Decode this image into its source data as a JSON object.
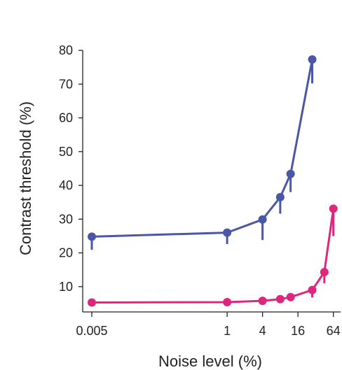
{
  "chart_data": {
    "type": "line",
    "title": "",
    "xlabel": "Noise level (%)",
    "ylabel": "Contrast threshold (%)",
    "x_scale": "log2",
    "x_tick_labels": [
      "0.005",
      "1",
      "4",
      "16",
      "64"
    ],
    "x_ticks": [
      0.005,
      1,
      4,
      16,
      64
    ],
    "xlim": [
      0.0035,
      85
    ],
    "y_tick_labels": [
      "10",
      "20",
      "30",
      "40",
      "50",
      "60",
      "70",
      "80"
    ],
    "y_ticks": [
      10,
      20,
      30,
      40,
      50,
      60,
      70,
      80
    ],
    "ylim": [
      2.5,
      80
    ],
    "grid": false,
    "legend": "none",
    "error_bar_direction": "down",
    "series": [
      {
        "color": "#4a56a6",
        "x": [
          0.005,
          1,
          4,
          8,
          12,
          28
        ],
        "y": [
          24.8,
          26.0,
          29.9,
          36.5,
          43.4,
          77.3
        ],
        "error_down": [
          3.9,
          3.4,
          6.1,
          4.9,
          5.4,
          7.1
        ]
      },
      {
        "color": "#e0267c",
        "x": [
          0.005,
          1,
          4,
          8,
          12,
          28,
          45,
          64
        ],
        "y": [
          5.3,
          5.4,
          5.8,
          6.3,
          6.9,
          9.0,
          14.3,
          33.1
        ],
        "error_down": [
          0,
          0,
          0,
          0,
          0.6,
          2.2,
          3.3,
          8.1
        ]
      }
    ]
  }
}
